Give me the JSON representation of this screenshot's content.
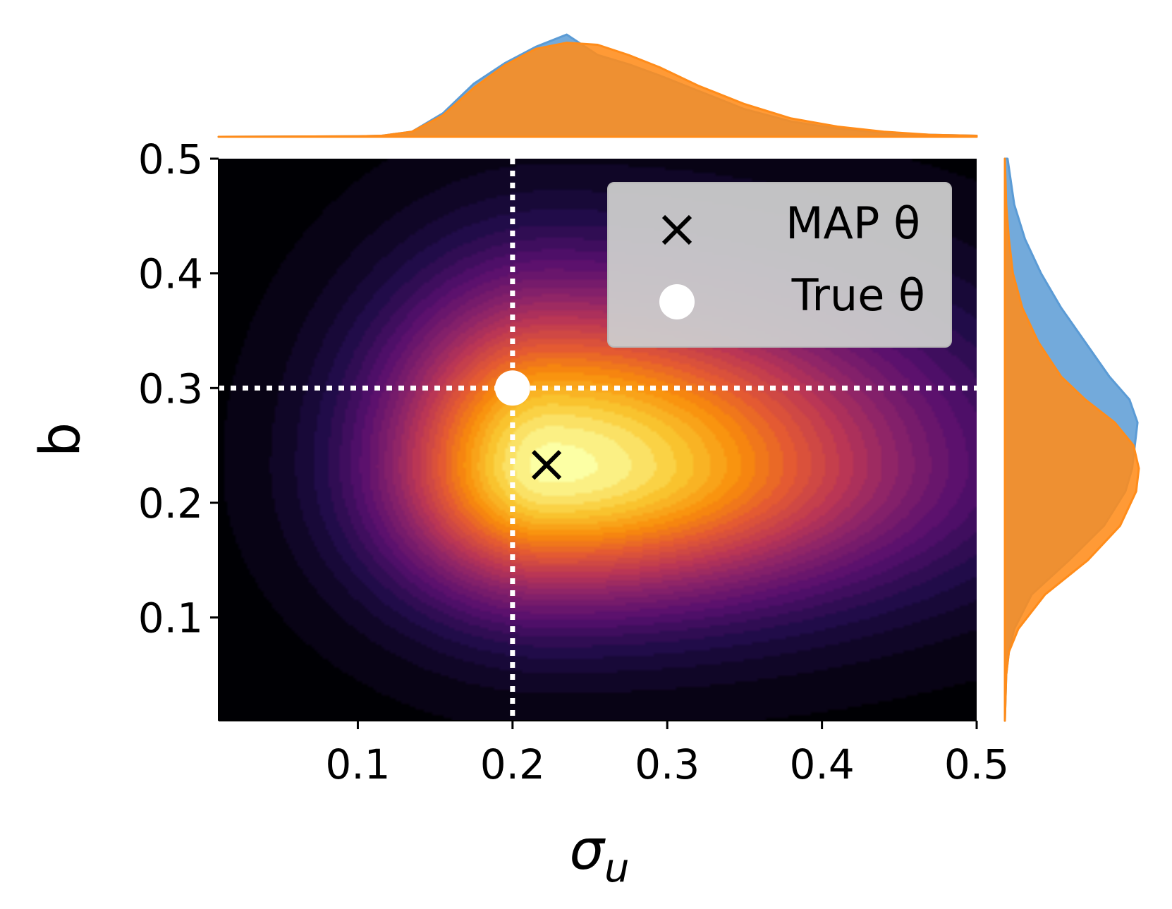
{
  "chart_data": {
    "type": "heatmap",
    "subtype": "joint-density-with-marginals",
    "xlabel": "σ",
    "xlabel_subscript": "u",
    "ylabel": "b",
    "xlim": [
      0.01,
      0.5
    ],
    "ylim": [
      0.01,
      0.5
    ],
    "xticks": [
      0.1,
      0.2,
      0.3,
      0.4,
      0.5
    ],
    "xtick_labels": [
      "0.1",
      "0.2",
      "0.3",
      "0.4",
      "0.5"
    ],
    "yticks": [
      0.1,
      0.2,
      0.3,
      0.4,
      0.5
    ],
    "ytick_labels": [
      "0.1",
      "0.2",
      "0.3",
      "0.4",
      "0.5"
    ],
    "colormap": "inferno",
    "density": {
      "peak": [
        0.225,
        0.232
      ],
      "spread_x": [
        0.055,
        0.12
      ],
      "spread_y": [
        0.06,
        0.08
      ]
    },
    "reference_lines": {
      "x": 0.2,
      "y": 0.3,
      "style": "dotted",
      "color": "#ffffff"
    },
    "map_point": {
      "x": 0.222,
      "y": 0.233
    },
    "true_point": {
      "x": 0.2,
      "y": 0.3
    },
    "legend": {
      "placement": "top-right",
      "entries": [
        {
          "marker": "×",
          "label": "MAP θ"
        },
        {
          "marker": "●",
          "label": "True θ"
        }
      ]
    },
    "marginal_top": {
      "x": [
        0.01,
        0.1,
        0.115,
        0.135,
        0.155,
        0.175,
        0.195,
        0.215,
        0.235,
        0.255,
        0.275,
        0.295,
        0.32,
        0.35,
        0.38,
        0.41,
        0.44,
        0.47,
        0.5
      ],
      "series": [
        {
          "color": "#5b9bd5",
          "values": [
            0.0,
            0.005,
            0.01,
            0.05,
            0.23,
            0.52,
            0.72,
            0.88,
            1.0,
            0.8,
            0.71,
            0.6,
            0.45,
            0.27,
            0.15,
            0.08,
            0.04,
            0.02,
            0.01
          ]
        },
        {
          "color": "#ff8c1a",
          "values": [
            0.0,
            0.005,
            0.01,
            0.05,
            0.21,
            0.48,
            0.7,
            0.86,
            0.92,
            0.9,
            0.8,
            0.68,
            0.5,
            0.32,
            0.18,
            0.1,
            0.05,
            0.02,
            0.01
          ]
        }
      ]
    },
    "marginal_right": {
      "y": [
        0.01,
        0.05,
        0.07,
        0.09,
        0.12,
        0.15,
        0.18,
        0.21,
        0.23,
        0.25,
        0.27,
        0.29,
        0.31,
        0.34,
        0.37,
        0.4,
        0.43,
        0.46,
        0.5
      ],
      "series": [
        {
          "color": "#5b9bd5",
          "values": [
            0.0,
            0.01,
            0.03,
            0.07,
            0.2,
            0.48,
            0.74,
            0.9,
            0.95,
            0.97,
            0.99,
            0.93,
            0.78,
            0.6,
            0.42,
            0.27,
            0.15,
            0.07,
            0.02
          ]
        },
        {
          "color": "#ff8c1a",
          "values": [
            0.0,
            0.01,
            0.03,
            0.1,
            0.3,
            0.62,
            0.86,
            0.98,
            1.0,
            0.96,
            0.82,
            0.6,
            0.42,
            0.25,
            0.13,
            0.06,
            0.03,
            0.01,
            0.0
          ]
        }
      ]
    },
    "colors": {
      "background": "#000004",
      "accent_blue": "#5b9bd5",
      "accent_orange": "#ff8c1a",
      "legend_box": "#cccccc"
    }
  }
}
